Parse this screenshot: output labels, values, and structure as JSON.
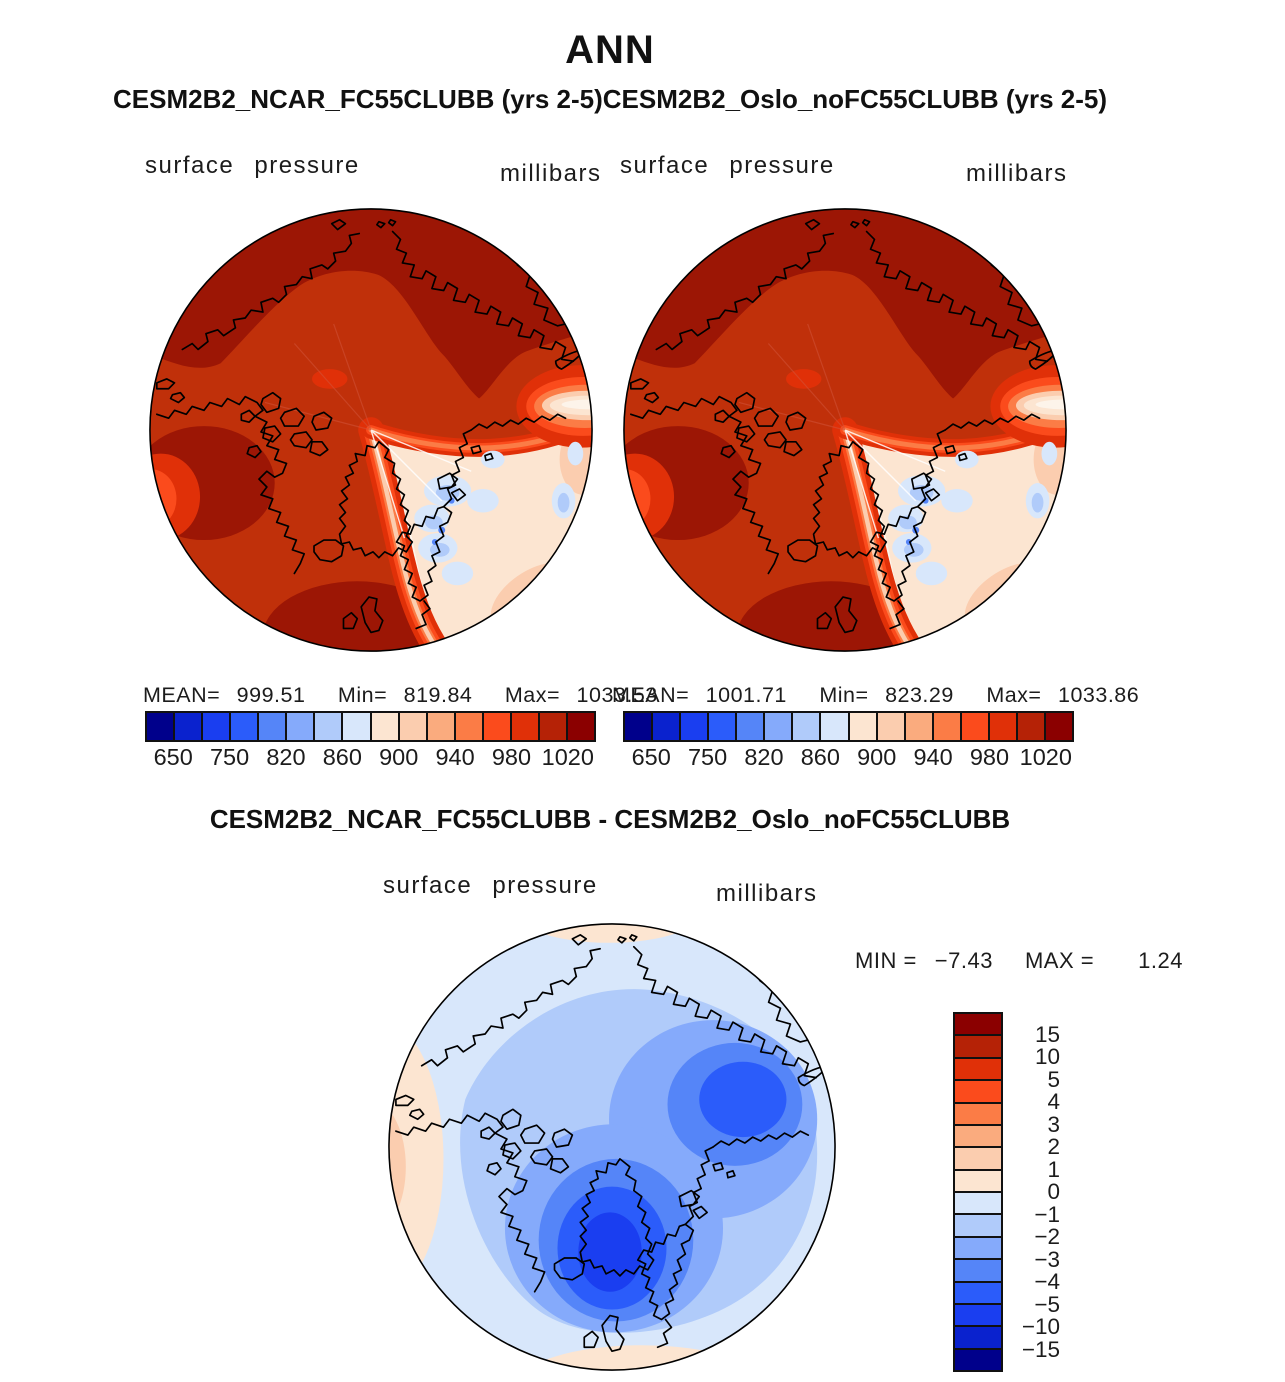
{
  "title": "ANN",
  "subtitle": "CESM2B2_NCAR_FC55CLUBB (yrs 2-5)CESM2B2_Oslo_noFC55CLUBB (yrs 2-5)",
  "panel_left": {
    "field": "surface pressure",
    "units": "millibars",
    "mean_label": "MEAN=",
    "mean": "999.51",
    "min_label": "Min=",
    "min": "819.84",
    "max_label": "Max=",
    "max": "1033.53"
  },
  "panel_right": {
    "field": "surface pressure",
    "units": "millibars",
    "mean_label": "MEAN=",
    "mean": "1001.71",
    "min_label": "Min=",
    "min": "823.29",
    "max_label": "Max=",
    "max": "1033.86"
  },
  "diff": {
    "title": "CESM2B2_NCAR_FC55CLUBB - CESM2B2_Oslo_noFC55CLUBB",
    "field": "surface pressure",
    "units": "millibars",
    "min_label": "MIN =",
    "min": "−7.43",
    "max_label": "MAX =",
    "max": "1.24"
  },
  "pressure_colorbar": {
    "palette": [
      "#00008B",
      "#0A22CE",
      "#1A3EF0",
      "#2B5CFA",
      "#5585F8",
      "#85AAFB",
      "#B0CBFA",
      "#D8E7FB",
      "#FCE5D1",
      "#FBCDAF",
      "#FAAB7E",
      "#FB7C46",
      "#FB4B1C",
      "#E03008",
      "#B52206",
      "#8B0000"
    ],
    "ticks": [
      {
        "label": "650",
        "pct": 6.25
      },
      {
        "label": "750",
        "pct": 18.75
      },
      {
        "label": "820",
        "pct": 31.25
      },
      {
        "label": "860",
        "pct": 43.75
      },
      {
        "label": "900",
        "pct": 56.25
      },
      {
        "label": "940",
        "pct": 68.75
      },
      {
        "label": "980",
        "pct": 81.25
      },
      {
        "label": "1020",
        "pct": 93.75
      }
    ]
  },
  "diff_colorbar": {
    "palette": [
      "#8B0000",
      "#B52206",
      "#E03008",
      "#FB4B1C",
      "#FB7C46",
      "#FAAB7E",
      "#FBCDAF",
      "#FCE5D1",
      "#D8E7FB",
      "#B0CBFA",
      "#85AAFB",
      "#5585F8",
      "#2B5CFA",
      "#1A3EF0",
      "#0A22CE",
      "#00008B"
    ],
    "ticks": [
      {
        "label": "15",
        "pct": 6.25
      },
      {
        "label": "10",
        "pct": 12.5
      },
      {
        "label": "5",
        "pct": 18.75
      },
      {
        "label": "4",
        "pct": 25
      },
      {
        "label": "3",
        "pct": 31.25
      },
      {
        "label": "2",
        "pct": 37.5
      },
      {
        "label": "1",
        "pct": 43.75
      },
      {
        "label": "0",
        "pct": 50
      },
      {
        "label": "−1",
        "pct": 56.25
      },
      {
        "label": "−2",
        "pct": 62.5
      },
      {
        "label": "−3",
        "pct": 68.75
      },
      {
        "label": "−4",
        "pct": 75
      },
      {
        "label": "−5",
        "pct": 81.25
      },
      {
        "label": "−10",
        "pct": 87.5
      },
      {
        "label": "−15",
        "pct": 93.75
      }
    ]
  },
  "chart_data": [
    {
      "type": "heatmap",
      "title": "CESM2B2_NCAR_FC55CLUBB (yrs 2-5)",
      "field": "surface pressure",
      "units": "millibars",
      "projection": "north polar stereographic",
      "mean": 999.51,
      "min": 819.84,
      "max": 1033.53,
      "contour_levels": [
        650,
        700,
        750,
        800,
        820,
        840,
        860,
        880,
        900,
        920,
        940,
        960,
        980,
        1000,
        1020
      ],
      "legend_position": "bottom"
    },
    {
      "type": "heatmap",
      "title": "CESM2B2_Oslo_noFC55CLUBB (yrs 2-5)",
      "field": "surface pressure",
      "units": "millibars",
      "projection": "north polar stereographic",
      "mean": 1001.71,
      "min": 823.29,
      "max": 1033.86,
      "contour_levels": [
        650,
        700,
        750,
        800,
        820,
        840,
        860,
        880,
        900,
        920,
        940,
        960,
        980,
        1000,
        1020
      ],
      "legend_position": "bottom"
    },
    {
      "type": "heatmap",
      "title": "CESM2B2_NCAR_FC55CLUBB - CESM2B2_Oslo_noFC55CLUBB",
      "field": "surface pressure",
      "units": "millibars",
      "projection": "north polar stereographic",
      "min": -7.43,
      "max": 1.24,
      "contour_levels": [
        -15,
        -10,
        -5,
        -4,
        -3,
        -2,
        -1,
        0,
        1,
        2,
        3,
        4,
        5,
        10,
        15
      ],
      "legend_position": "right"
    }
  ]
}
